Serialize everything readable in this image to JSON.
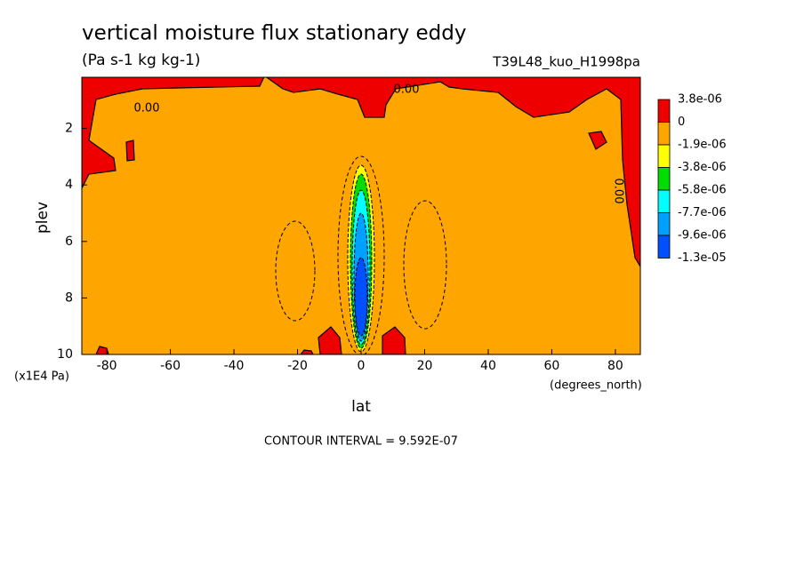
{
  "chart_data": {
    "type": "contour",
    "title": "vertical moisture flux stationary eddy",
    "subtitle": "(Pa s-1 kg kg-1)",
    "dataset": "T39L48_kuo_H1998pa",
    "x_label": "lat",
    "x_units": "(degrees_north)",
    "y_label": "plev",
    "y_units": "(x1E4 Pa)",
    "xlim": [
      -87.86,
      87.86
    ],
    "xticks": [
      -80,
      -60,
      -40,
      -20,
      0,
      20,
      40,
      60,
      80
    ],
    "ylim": [
      10,
      0.19
    ],
    "yticks": [
      2,
      4,
      6,
      8,
      10
    ],
    "levels": [
      {
        "value": 3.8e-06,
        "label": "3.8e-06"
      },
      0,
      {
        "value": -1.9e-06,
        "label": "-1.9e-06"
      },
      {
        "value": -3.8e-06,
        "label": "-3.8e-06"
      },
      {
        "value": -5.8e-06,
        "label": "-5.8e-06"
      },
      {
        "value": -7.7e-06,
        "label": "-7.7e-06"
      },
      {
        "value": -9.6e-06,
        "label": "-9.6e-06"
      },
      {
        "value": -1.3e-05,
        "label": "-1.3e-05"
      }
    ],
    "colors": [
      "#ee0000",
      "#ffa500",
      "#ffff00",
      "#00dd00",
      "#00ffff",
      "#00a0ff",
      "#0050ff"
    ],
    "contour_labels": [
      "0.00",
      "0.00",
      "0.00"
    ],
    "contour_interval": "CONTOUR INTERVAL = 9.592E-07"
  }
}
